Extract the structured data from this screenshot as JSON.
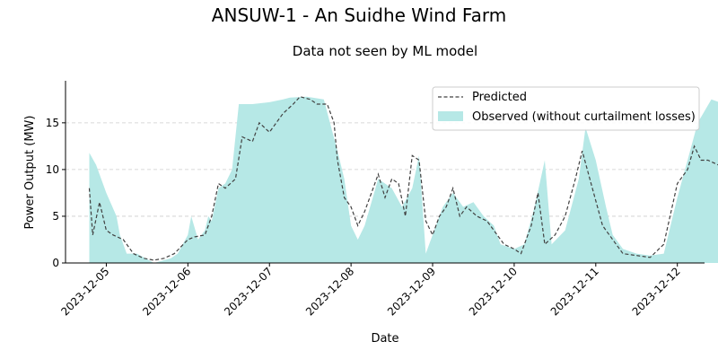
{
  "chart_data": {
    "type": "area",
    "title": "ANSUW-1 - An Suidhe Wind Farm",
    "subtitle": "Data not seen by ML model",
    "xlabel": "Date",
    "ylabel": "Power Output (MW)",
    "xlim": [
      "2023-12-04T12:00",
      "2023-12-12T08:00"
    ],
    "ylim": [
      0,
      19.5
    ],
    "x_ticks": [
      "2023-12-05",
      "2023-12-06",
      "2023-12-07",
      "2023-12-08",
      "2023-12-09",
      "2023-12-10",
      "2023-12-11",
      "2023-12-12"
    ],
    "y_ticks": [
      0,
      5,
      10,
      15
    ],
    "grid": "y-dashed",
    "legend_position": "top-right",
    "colors": {
      "observed": "#b6e8e6",
      "predicted": "#404040",
      "grid": "#cccccc"
    },
    "series": [
      {
        "name": "Observed (without curtailment losses)",
        "style": "filled-area",
        "points": [
          [
            "2023-12-04T19:00",
            11.8
          ],
          [
            "2023-12-04T21:00",
            10.5
          ],
          [
            "2023-12-05T00:00",
            7.5
          ],
          [
            "2023-12-05T03:00",
            5.0
          ],
          [
            "2023-12-05T04:00",
            3.0
          ],
          [
            "2023-12-05T06:00",
            1.0
          ],
          [
            "2023-12-05T09:00",
            1.0
          ],
          [
            "2023-12-05T14:00",
            0
          ],
          [
            "2023-12-05T19:00",
            0.5
          ],
          [
            "2023-12-05T21:00",
            1.0
          ],
          [
            "2023-12-06T00:00",
            3.0
          ],
          [
            "2023-12-06T01:00",
            5.0
          ],
          [
            "2023-12-06T03:00",
            2.5
          ],
          [
            "2023-12-06T05:00",
            3.5
          ],
          [
            "2023-12-06T06:00",
            5.0
          ],
          [
            "2023-12-06T07:00",
            4.5
          ],
          [
            "2023-12-06T09:00",
            8.0
          ],
          [
            "2023-12-06T11:00",
            8.5
          ],
          [
            "2023-12-06T13:00",
            10.0
          ],
          [
            "2023-12-06T15:00",
            17.0
          ],
          [
            "2023-12-06T19:00",
            17.0
          ],
          [
            "2023-12-07T00:00",
            17.2
          ],
          [
            "2023-12-07T04:00",
            17.5
          ],
          [
            "2023-12-07T06:00",
            17.7
          ],
          [
            "2023-12-07T11:00",
            17.8
          ],
          [
            "2023-12-07T16:00",
            17.5
          ],
          [
            "2023-12-07T20:00",
            12.0
          ],
          [
            "2023-12-07T22:00",
            9.0
          ],
          [
            "2023-12-08T00:00",
            4.0
          ],
          [
            "2023-12-08T02:00",
            2.5
          ],
          [
            "2023-12-08T04:00",
            4.0
          ],
          [
            "2023-12-08T06:00",
            6.5
          ],
          [
            "2023-12-08T08:00",
            9.0
          ],
          [
            "2023-12-08T12:00",
            8.0
          ],
          [
            "2023-12-08T15:00",
            6.0
          ],
          [
            "2023-12-08T18:00",
            8.0
          ],
          [
            "2023-12-08T20:00",
            11.5
          ],
          [
            "2023-12-08T22:00",
            1.0
          ],
          [
            "2023-12-09T00:00",
            3.0
          ],
          [
            "2023-12-09T03:00",
            6.0
          ],
          [
            "2023-12-09T06:00",
            7.5
          ],
          [
            "2023-12-09T09:00",
            6.0
          ],
          [
            "2023-12-09T12:00",
            6.5
          ],
          [
            "2023-12-09T15:00",
            5.0
          ],
          [
            "2023-12-09T18:00",
            4.0
          ],
          [
            "2023-12-09T20:00",
            2.0
          ],
          [
            "2023-12-10T00:00",
            1.5
          ],
          [
            "2023-12-10T03:00",
            2.0
          ],
          [
            "2023-12-10T06:00",
            6.0
          ],
          [
            "2023-12-10T09:00",
            11.0
          ],
          [
            "2023-12-10T11:00",
            2.0
          ],
          [
            "2023-12-10T15:00",
            3.5
          ],
          [
            "2023-12-10T19:00",
            9.0
          ],
          [
            "2023-12-10T21:00",
            14.5
          ],
          [
            "2023-12-11T00:00",
            11.0
          ],
          [
            "2023-12-11T03:00",
            6.0
          ],
          [
            "2023-12-11T05:00",
            3.0
          ],
          [
            "2023-12-11T08:00",
            1.5
          ],
          [
            "2023-12-11T12:00",
            1.0
          ],
          [
            "2023-12-11T16:00",
            0.8
          ],
          [
            "2023-12-11T20:00",
            1.0
          ],
          [
            "2023-12-12T00:00",
            7.0
          ],
          [
            "2023-12-12T03:00",
            11.0
          ],
          [
            "2023-12-12T06:00",
            15.0
          ],
          [
            "2023-12-12T10:00",
            17.5
          ],
          [
            "2023-12-12T14:00",
            17.0
          ]
        ]
      },
      {
        "name": "Predicted",
        "style": "dashed-line",
        "points": [
          [
            "2023-12-04T19:00",
            8.0
          ],
          [
            "2023-12-04T20:00",
            3.0
          ],
          [
            "2023-12-04T22:00",
            6.5
          ],
          [
            "2023-12-05T00:00",
            3.5
          ],
          [
            "2023-12-05T02:00",
            3.0
          ],
          [
            "2023-12-05T05:00",
            2.5
          ],
          [
            "2023-12-05T08:00",
            1.0
          ],
          [
            "2023-12-05T11:00",
            0.5
          ],
          [
            "2023-12-05T14:00",
            0.3
          ],
          [
            "2023-12-05T17:00",
            0.5
          ],
          [
            "2023-12-05T20:00",
            1.0
          ],
          [
            "2023-12-06T00:00",
            2.5
          ],
          [
            "2023-12-06T02:00",
            2.8
          ],
          [
            "2023-12-06T05:00",
            3.0
          ],
          [
            "2023-12-06T07:00",
            5.0
          ],
          [
            "2023-12-06T09:00",
            8.5
          ],
          [
            "2023-12-06T11:00",
            8.0
          ],
          [
            "2023-12-06T14:00",
            9.0
          ],
          [
            "2023-12-06T16:00",
            13.5
          ],
          [
            "2023-12-06T19:00",
            13.0
          ],
          [
            "2023-12-06T21:00",
            15.0
          ],
          [
            "2023-12-07T00:00",
            14.0
          ],
          [
            "2023-12-07T04:00",
            16.0
          ],
          [
            "2023-12-07T07:00",
            17.0
          ],
          [
            "2023-12-07T09:00",
            17.8
          ],
          [
            "2023-12-07T12:00",
            17.5
          ],
          [
            "2023-12-07T14:00",
            17.0
          ],
          [
            "2023-12-07T17:00",
            17.0
          ],
          [
            "2023-12-07T19:00",
            15.0
          ],
          [
            "2023-12-07T20:00",
            11.0
          ],
          [
            "2023-12-07T22:00",
            7.0
          ],
          [
            "2023-12-08T00:00",
            6.0
          ],
          [
            "2023-12-08T02:00",
            4.0
          ],
          [
            "2023-12-08T04:00",
            5.5
          ],
          [
            "2023-12-08T06:00",
            7.5
          ],
          [
            "2023-12-08T08:00",
            9.5
          ],
          [
            "2023-12-08T10:00",
            7.0
          ],
          [
            "2023-12-08T12:00",
            9.0
          ],
          [
            "2023-12-08T14:00",
            8.5
          ],
          [
            "2023-12-08T16:00",
            5.0
          ],
          [
            "2023-12-08T18:00",
            11.5
          ],
          [
            "2023-12-08T20:00",
            11.0
          ],
          [
            "2023-12-08T22:00",
            4.5
          ],
          [
            "2023-12-09T00:00",
            3.0
          ],
          [
            "2023-12-09T02:00",
            5.0
          ],
          [
            "2023-12-09T04:00",
            6.0
          ],
          [
            "2023-12-09T06:00",
            8.0
          ],
          [
            "2023-12-09T08:00",
            5.0
          ],
          [
            "2023-12-09T10:00",
            6.0
          ],
          [
            "2023-12-09T13:00",
            5.0
          ],
          [
            "2023-12-09T16:00",
            4.5
          ],
          [
            "2023-12-09T19:00",
            3.0
          ],
          [
            "2023-12-09T21:00",
            2.0
          ],
          [
            "2023-12-10T00:00",
            1.5
          ],
          [
            "2023-12-10T02:00",
            1.0
          ],
          [
            "2023-12-10T05:00",
            4.0
          ],
          [
            "2023-12-10T07:00",
            7.5
          ],
          [
            "2023-12-10T09:00",
            2.0
          ],
          [
            "2023-12-10T12:00",
            3.0
          ],
          [
            "2023-12-10T15:00",
            5.0
          ],
          [
            "2023-12-10T18:00",
            9.0
          ],
          [
            "2023-12-10T20:00",
            12.0
          ],
          [
            "2023-12-10T23:00",
            8.0
          ],
          [
            "2023-12-11T02:00",
            4.0
          ],
          [
            "2023-12-11T05:00",
            2.5
          ],
          [
            "2023-12-11T08:00",
            1.0
          ],
          [
            "2023-12-11T12:00",
            0.8
          ],
          [
            "2023-12-11T16:00",
            0.6
          ],
          [
            "2023-12-11T20:00",
            2.0
          ],
          [
            "2023-12-12T00:00",
            8.5
          ],
          [
            "2023-12-12T03:00",
            10.0
          ],
          [
            "2023-12-12T05:00",
            12.5
          ],
          [
            "2023-12-12T07:00",
            11.0
          ],
          [
            "2023-12-12T09:00",
            11.0
          ],
          [
            "2023-12-12T12:00",
            10.5
          ]
        ]
      }
    ]
  }
}
